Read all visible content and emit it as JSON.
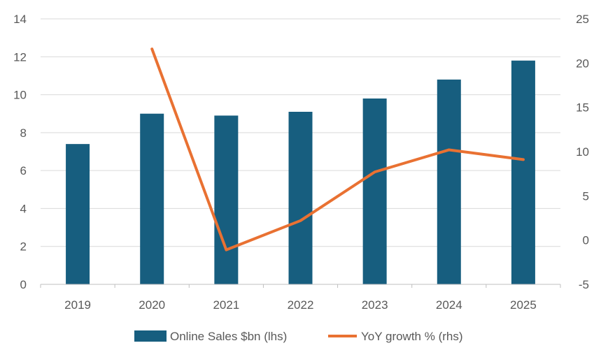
{
  "chart_data": {
    "type": "bar",
    "title": "",
    "xlabel": "",
    "ylabel": "",
    "categories": [
      "2019",
      "2020",
      "2021",
      "2022",
      "2023",
      "2024",
      "2025"
    ],
    "series": [
      {
        "name": "Online Sales $bn (lhs)",
        "type": "bar",
        "axis": "left",
        "color": "#175E7F",
        "values": [
          7.4,
          9.0,
          8.9,
          9.1,
          9.8,
          10.8,
          11.8
        ]
      },
      {
        "name": "YoY growth % (rhs)",
        "type": "line",
        "axis": "right",
        "color": "#E97132",
        "values": [
          null,
          21.6,
          -1.1,
          2.2,
          7.7,
          10.2,
          9.1
        ]
      }
    ],
    "ylim": [
      0,
      14
    ],
    "yticks": [
      "0",
      "2",
      "4",
      "6",
      "8",
      "10",
      "12",
      "14"
    ],
    "y2lim": [
      -5,
      25
    ],
    "y2ticks": [
      "-5",
      "0",
      "5",
      "10",
      "15",
      "20",
      "25"
    ],
    "grid": true,
    "gridlines": "horizontal",
    "legend_position": "bottom"
  }
}
